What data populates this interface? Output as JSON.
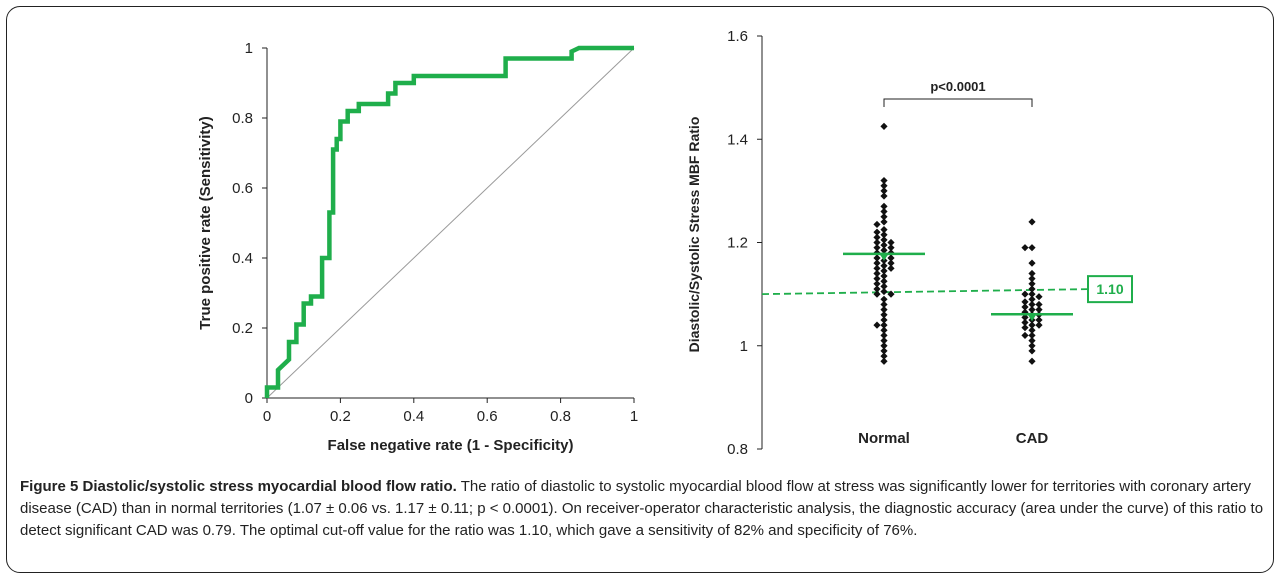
{
  "caption": {
    "title": "Figure 5 Diastolic/systolic stress myocardial blood flow ratio.",
    "body": "The ratio of diastolic to systolic myocardial blood flow at stress was significantly lower for territories with coronary artery disease (CAD) than in normal territories (1.07 ± 0.06 vs. 1.17 ± 0.11; p < 0.0001). On receiver-operator characteristic analysis, the diagnostic accuracy (area under the curve) of this ratio to detect significant CAD was 0.79. The optimal cut-off value for the ratio was 1.10, which gave a sensitivity of 82% and specificity of 76%."
  },
  "colors": {
    "roc": "#1fae4b",
    "reference": "#9a9a9a",
    "points": "#111111",
    "accent": "#1fae4b"
  },
  "chart_data": [
    {
      "type": "line",
      "title": "",
      "xlabel": "False negative rate (1 - Specificity)",
      "ylabel": "True positive rate (Sensitivity)",
      "xlim": [
        0,
        1
      ],
      "ylim": [
        0,
        1
      ],
      "xticks": [
        "0",
        "0.2",
        "0.4",
        "0.6",
        "0.8",
        "1"
      ],
      "yticks": [
        "0",
        "0.2",
        "0.4",
        "0.6",
        "0.8",
        "1"
      ],
      "grid": false,
      "series": [
        {
          "x": [
            0,
            0,
            0.03,
            0.03,
            0.06,
            0.06,
            0.08,
            0.08,
            0.1,
            0.1,
            0.12,
            0.12,
            0.15,
            0.15,
            0.17,
            0.17,
            0.18,
            0.18,
            0.19,
            0.19,
            0.2,
            0.2,
            0.22,
            0.22,
            0.25,
            0.25,
            0.27,
            0.27,
            0.33,
            0.33,
            0.35,
            0.35,
            0.37,
            0.37,
            0.4,
            0.4,
            0.65,
            0.65,
            0.83,
            0.83,
            0.85,
            1
          ],
          "y": [
            0,
            0.03,
            0.03,
            0.08,
            0.11,
            0.16,
            0.16,
            0.21,
            0.21,
            0.27,
            0.27,
            0.29,
            0.29,
            0.4,
            0.4,
            0.53,
            0.53,
            0.71,
            0.71,
            0.74,
            0.74,
            0.79,
            0.79,
            0.82,
            0.82,
            0.84,
            0.84,
            0.84,
            0.84,
            0.87,
            0.87,
            0.9,
            0.9,
            0.9,
            0.9,
            0.92,
            0.92,
            0.97,
            0.97,
            0.99,
            1,
            1
          ]
        },
        {
          "x": [
            0,
            1
          ],
          "y": [
            0,
            1
          ]
        }
      ]
    },
    {
      "type": "scatter",
      "title": "",
      "xlabel": "",
      "ylabel": "Diastolic/Systolic Stress MBF Ratio",
      "categories": [
        "Normal",
        "CAD"
      ],
      "ylim": [
        0.8,
        1.6
      ],
      "yticks": [
        "0.8",
        "1",
        "1.2",
        "1.4",
        "1.6"
      ],
      "grid": false,
      "series": [
        {
          "values": [
            1.425,
            1.32,
            1.31,
            1.3,
            1.29,
            1.27,
            1.26,
            1.25,
            1.24,
            1.235,
            1.225,
            1.22,
            1.215,
            1.21,
            1.205,
            1.2,
            1.2,
            1.195,
            1.19,
            1.19,
            1.185,
            1.18,
            1.18,
            1.175,
            1.17,
            1.17,
            1.165,
            1.16,
            1.16,
            1.155,
            1.15,
            1.15,
            1.145,
            1.14,
            1.135,
            1.13,
            1.125,
            1.12,
            1.115,
            1.11,
            1.105,
            1.1,
            1.1,
            1.09,
            1.08,
            1.07,
            1.06,
            1.05,
            1.04,
            1.04,
            1.03,
            1.02,
            1.01,
            1.0,
            0.99,
            0.98,
            0.97
          ],
          "mean": 1.178
        },
        {
          "values": [
            1.24,
            1.19,
            1.19,
            1.16,
            1.14,
            1.13,
            1.12,
            1.11,
            1.1,
            1.1,
            1.095,
            1.09,
            1.085,
            1.08,
            1.08,
            1.075,
            1.07,
            1.07,
            1.065,
            1.06,
            1.06,
            1.055,
            1.05,
            1.05,
            1.045,
            1.04,
            1.04,
            1.035,
            1.03,
            1.02,
            1.02,
            1.01,
            1.0,
            0.99,
            0.97
          ],
          "mean": 1.061
        }
      ],
      "cutoff": {
        "value": 1.1,
        "label": "1.10"
      },
      "annotation": {
        "label": "p<0.0001"
      }
    }
  ]
}
